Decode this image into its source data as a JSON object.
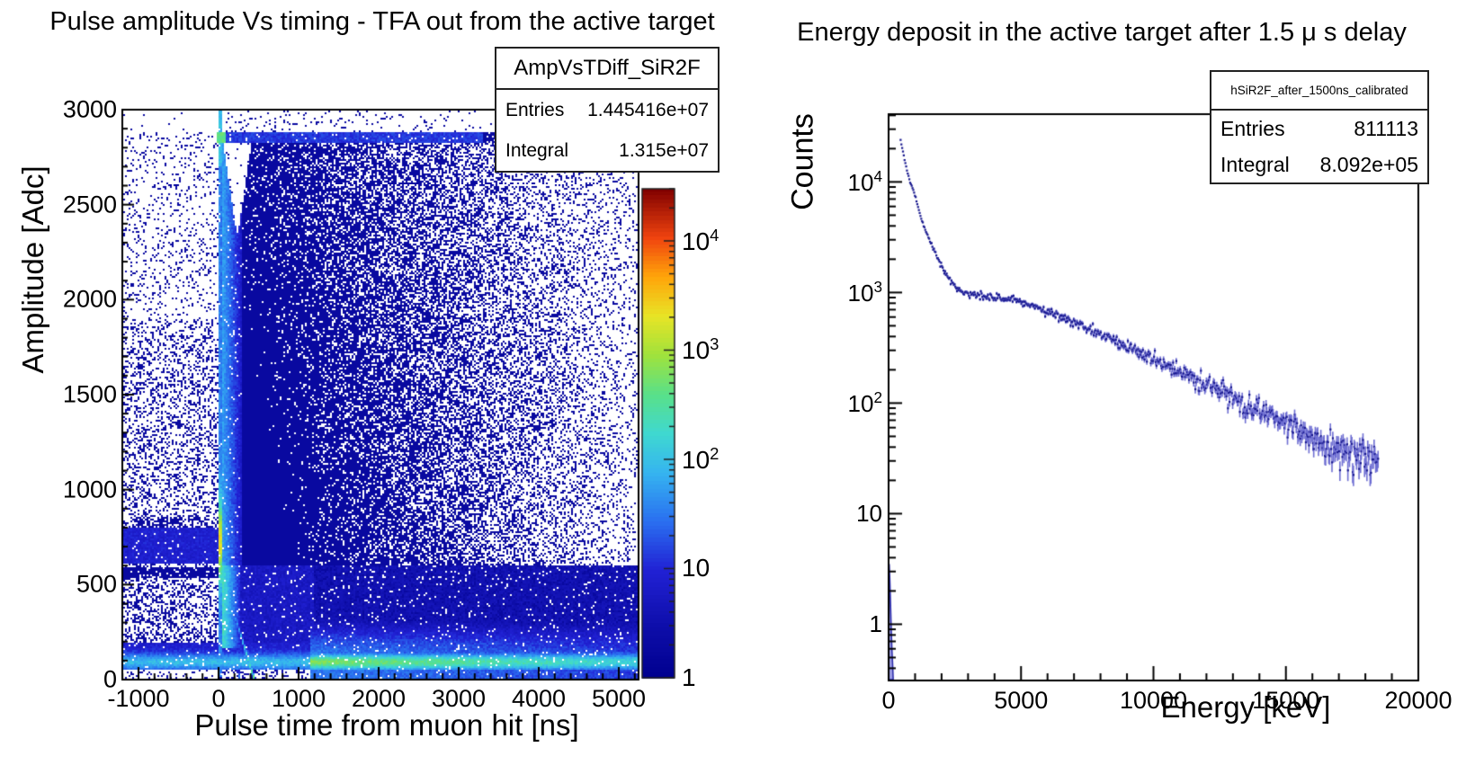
{
  "palette": {
    "stops": [
      [
        0.0,
        "#00008f"
      ],
      [
        0.1,
        "#0d0da8"
      ],
      [
        0.22,
        "#2121d4"
      ],
      [
        0.32,
        "#2a6ff0"
      ],
      [
        0.42,
        "#35b4f0"
      ],
      [
        0.5,
        "#3fd8d0"
      ],
      [
        0.58,
        "#59e089"
      ],
      [
        0.66,
        "#9fe23c"
      ],
      [
        0.74,
        "#e8e426"
      ],
      [
        0.82,
        "#ffa50a"
      ],
      [
        0.9,
        "#f0440f"
      ],
      [
        1.0,
        "#800000"
      ]
    ]
  },
  "colors": {
    "marker": "#15158c",
    "error_bar": "#6e6ed2",
    "spike_fill": "#9a9ae2",
    "spike_edge": "#2828a8",
    "frame": "#000000"
  },
  "left": {
    "title": "Pulse amplitude Vs timing - TFA out from the active target",
    "stats": {
      "name": "AmpVsTDiff_SiR2F",
      "entries_label": "Entries",
      "entries": "1.445416e+07",
      "integral_label": "Integral",
      "integral": "1.315e+07"
    },
    "x_axis": {
      "title": "Pulse time from muon hit [ns]",
      "min": -1202,
      "max": 5247,
      "minor_step": 200,
      "ticks": [
        {
          "v": -1000,
          "label": "-1000"
        },
        {
          "v": 0,
          "label": "0"
        },
        {
          "v": 1000,
          "label": "1000"
        },
        {
          "v": 2000,
          "label": "2000"
        },
        {
          "v": 3000,
          "label": "3000"
        },
        {
          "v": 4000,
          "label": "4000"
        },
        {
          "v": 5000,
          "label": "5000"
        }
      ]
    },
    "y_axis": {
      "title": "Amplitude [Adc]",
      "min": 0,
      "max": 3000,
      "minor_step": 100,
      "ticks": [
        {
          "v": 0,
          "label": "0"
        },
        {
          "v": 500,
          "label": "500"
        },
        {
          "v": 1000,
          "label": "1000"
        },
        {
          "v": 1500,
          "label": "1500"
        },
        {
          "v": 2000,
          "label": "2000"
        },
        {
          "v": 2500,
          "label": "2500"
        },
        {
          "v": 3000,
          "label": "3000"
        }
      ]
    },
    "colorbar": {
      "zmin": 1,
      "zmax": 30000,
      "scale": "log",
      "labels": [
        {
          "v": 10000,
          "label": "10^4"
        },
        {
          "v": 1000,
          "label": "10^3"
        },
        {
          "v": 100,
          "label": "10^2"
        },
        {
          "v": 10,
          "label": "10"
        },
        {
          "v": 1,
          "label": "1"
        }
      ]
    }
  },
  "right": {
    "title": "Energy deposit in the active target after 1.5 μ s delay",
    "stats": {
      "name": "hSiR2F_after_1500ns_calibrated",
      "entries_label": "Entries",
      "entries": "811113",
      "integral_label": "Integral",
      "integral": "8.092e+05"
    },
    "x_axis": {
      "title": "Energy [keV]",
      "min": 0,
      "max": 20000,
      "minor_step": 1000,
      "ticks": [
        {
          "v": 0,
          "label": "0"
        },
        {
          "v": 5000,
          "label": "5000"
        },
        {
          "v": 10000,
          "label": "10000"
        },
        {
          "v": 15000,
          "label": "15000"
        },
        {
          "v": 20000,
          "label": "20000"
        }
      ]
    },
    "y_axis": {
      "title": "Counts",
      "scale": "log",
      "min": 0.31,
      "max": 41000,
      "ticks": [
        {
          "v": 1,
          "label": "1"
        },
        {
          "v": 10,
          "label": "10"
        },
        {
          "v": 100,
          "label": "10^2"
        },
        {
          "v": 1000,
          "label": "10^3"
        },
        {
          "v": 10000,
          "label": "10^4"
        }
      ]
    }
  },
  "chart_data": [
    {
      "type": "heatmap",
      "title": "Pulse amplitude Vs timing - TFA out from the active target",
      "xlabel": "Pulse time from muon hit [ns]",
      "ylabel": "Amplitude [Adc]",
      "x_range": [
        -1202,
        5247
      ],
      "y_range": [
        0,
        3000
      ],
      "z_range": [
        1,
        30000
      ],
      "z_scale": "log",
      "legend_position": "colorbar-right",
      "stats": {
        "name": "AmpVsTDiff_SiR2F",
        "entries": 14454160,
        "integral": 13150000
      },
      "model": {
        "zmax_log": 4.477,
        "bg": {
          "left_low": 0.42,
          "left_mid": 0.3,
          "left_high": 0.13,
          "right_base": 1.06,
          "right_slope": 0.95,
          "amp_fac": 0.3,
          "top_fac": 0.12,
          "bottom_fac": 0.3
        },
        "sat_row": {
          "a0": 2825,
          "a1": 2885,
          "bright_t": 90,
          "bright_v": 2.6,
          "v": 1.12,
          "t_end": 3300,
          "fade": 400
        },
        "ridge": {
          "center": 22,
          "sigma": 16,
          "base": 2.05,
          "peak": 2.3,
          "peak_a": 730,
          "peak_sigma": 150,
          "top_v": 2.6,
          "a_min": 15
        },
        "streak1": {
          "t0": 40,
          "slope": 0.73,
          "sigma": 13,
          "amp": 2.7
        },
        "streak2": {
          "t0": 30,
          "slope": 0.42,
          "sigma": 10,
          "amp": 1.5
        },
        "notch": {
          "a0": 2350,
          "a1": 2825,
          "center": 235,
          "width_top": 170
        },
        "block": {
          "t0": 260,
          "t1": 1200,
          "a0": 170,
          "a1": 600,
          "v": 0.78
        },
        "gap": {
          "v0": 2.3,
          "decay": 0.006
        },
        "cloud_left": {
          "v0": 1.75,
          "decay": 0.004,
          "t1": 300
        },
        "below_block": {
          "v": 0.55,
          "p": 0.9
        },
        "bright_band": {
          "a_lo": 48,
          "a_hi": 190,
          "a_center": 92,
          "sigma": 31,
          "v_min": 0.9,
          "v_left": 1.95,
          "v_hot": 2.8,
          "t_hot": 1150,
          "hot_decay": 0.00016
        },
        "navy_band": {
          "a0": 128,
          "a1": 175,
          "v": 0.72
        },
        "left_bands": [
          {
            "a0": 610,
            "a1": 800,
            "v": 0.92
          },
          {
            "a0": 535,
            "a1": 596,
            "p": 0.88
          },
          {
            "a0": 800,
            "a1": 860,
            "p": 0.55
          }
        ],
        "glow": {
          "t0": 1150,
          "a_ref": 120,
          "sigma": 140,
          "v0": 1.5,
          "decay": 9e-05
        }
      }
    },
    {
      "type": "scatter",
      "title": "Energy deposit in the active target after 1.5 μ s delay",
      "xlabel": "Energy [keV]",
      "ylabel": "Counts",
      "x_range": [
        0,
        20000
      ],
      "y_range": [
        0.31,
        41000
      ],
      "y_scale": "log",
      "bin_width_kev": 30,
      "stats": {
        "name": "hSiR2F_after_1500ns_calibrated",
        "entries": 811113,
        "integral": 809200
      },
      "spike": [
        [
          0,
          0.5
        ],
        [
          25,
          3.5
        ],
        [
          50,
          2.4
        ],
        [
          75,
          1.5
        ],
        [
          100,
          0.9
        ],
        [
          125,
          0.6
        ],
        [
          150,
          0.45
        ]
      ],
      "anchors": [
        [
          450,
          24000
        ],
        [
          500,
          21000
        ],
        [
          550,
          18500
        ],
        [
          600,
          16000
        ],
        [
          700,
          12500
        ],
        [
          800,
          10200
        ],
        [
          900,
          9000
        ],
        [
          1000,
          7400
        ],
        [
          1200,
          4900
        ],
        [
          1400,
          3600
        ],
        [
          1600,
          2750
        ],
        [
          1800,
          2150
        ],
        [
          2000,
          1720
        ],
        [
          2200,
          1420
        ],
        [
          2400,
          1220
        ],
        [
          2600,
          1080
        ],
        [
          2800,
          1010
        ],
        [
          3000,
          980
        ],
        [
          3300,
          955
        ],
        [
          3600,
          935
        ],
        [
          4000,
          905
        ],
        [
          4400,
          875
        ],
        [
          4700,
          890
        ],
        [
          5000,
          830
        ],
        [
          5500,
          745
        ],
        [
          6000,
          670
        ],
        [
          6500,
          600
        ],
        [
          7000,
          535
        ],
        [
          7500,
          475
        ],
        [
          8000,
          420
        ],
        [
          8500,
          370
        ],
        [
          9000,
          325
        ],
        [
          9500,
          285
        ],
        [
          10000,
          250
        ],
        [
          10500,
          220
        ],
        [
          11000,
          193
        ],
        [
          11500,
          168
        ],
        [
          12000,
          147
        ],
        [
          12500,
          128
        ],
        [
          13000,
          112
        ],
        [
          13500,
          97
        ],
        [
          14000,
          85
        ],
        [
          14500,
          74
        ],
        [
          15000,
          65
        ],
        [
          15500,
          57
        ],
        [
          16000,
          50
        ],
        [
          16500,
          44
        ],
        [
          17000,
          39
        ],
        [
          17500,
          35
        ],
        [
          18000,
          31
        ],
        [
          18500,
          28
        ]
      ]
    }
  ]
}
